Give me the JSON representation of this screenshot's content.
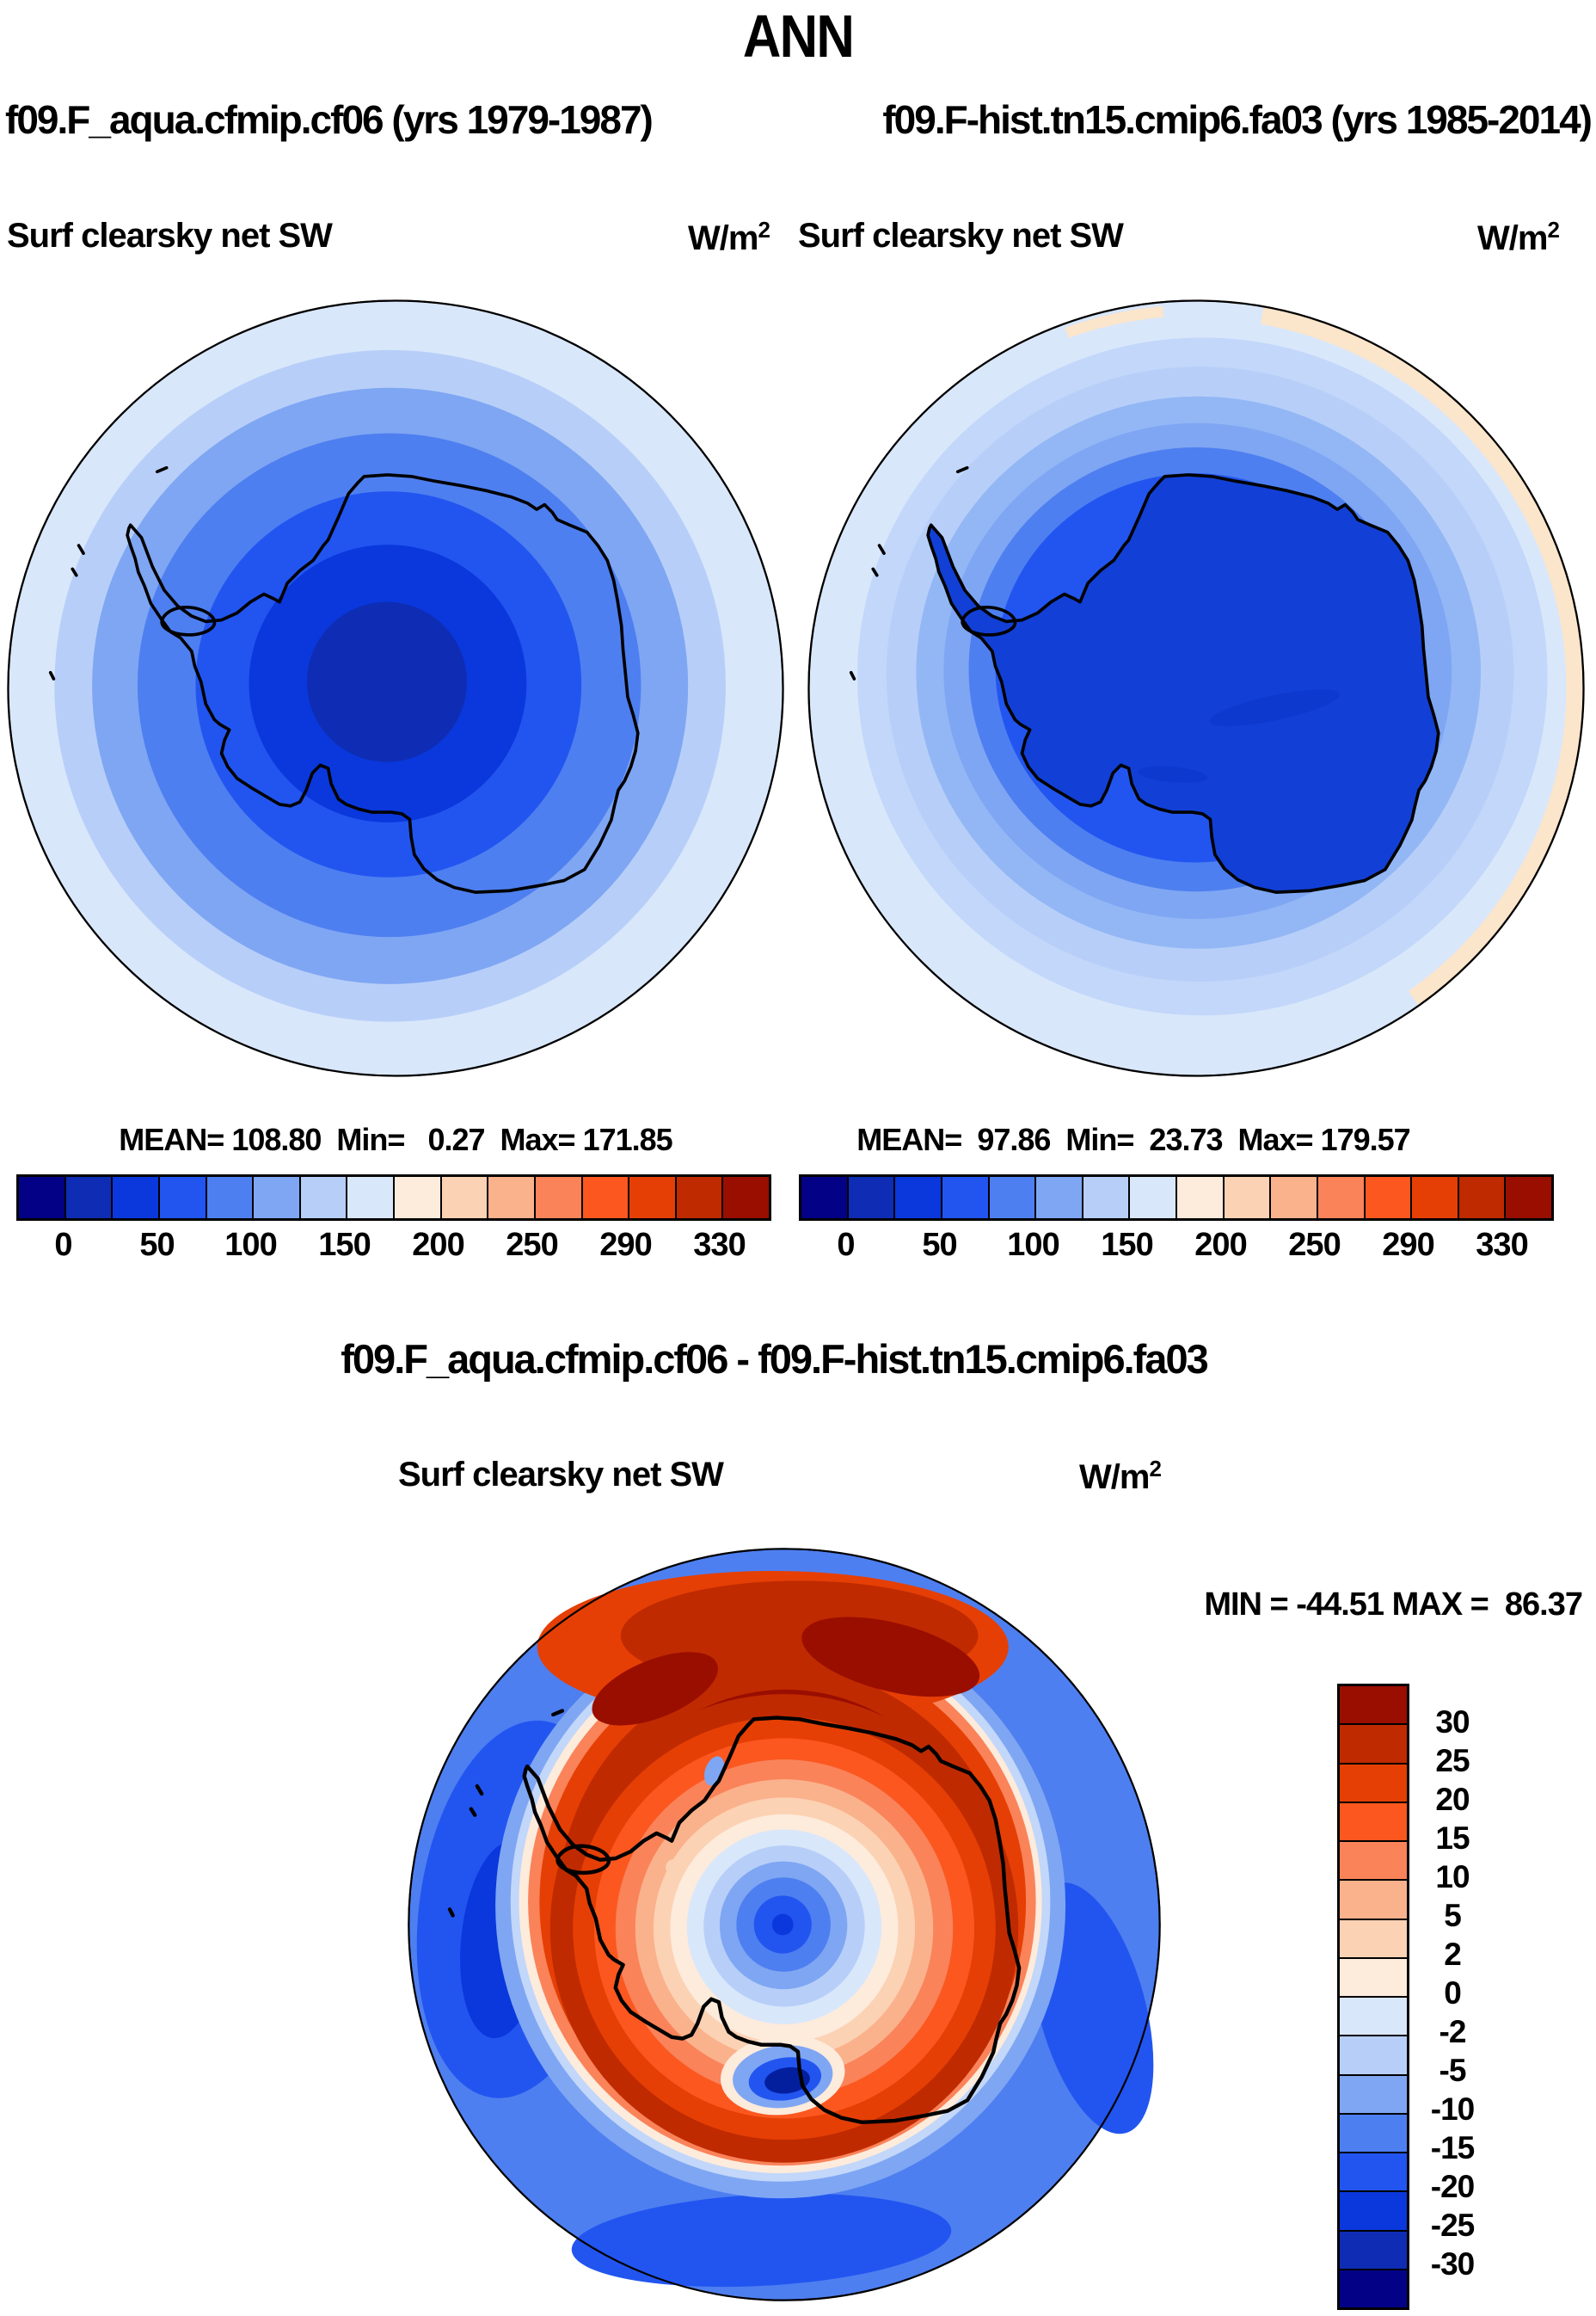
{
  "title": "ANN",
  "header": {
    "subtitle_left": "f09.F_aqua.cfmip.cf06 (yrs 1979-1987)",
    "subtitle_right": "f09.F-hist.tn15.cmip6.fa03 (yrs 1985-2014)"
  },
  "panels": {
    "left": {
      "title": "Surf clearsky net SW",
      "units": "W/m",
      "units_exp": "2",
      "stats": "MEAN= 108.80  Min=   0.27  Max= 171.85"
    },
    "right": {
      "title": "Surf clearsky net SW",
      "units": "W/m",
      "units_exp": "2",
      "stats": "MEAN=  97.86  Min=  23.73  Max= 179.57"
    },
    "diff": {
      "heading": "f09.F_aqua.cfmip.cf06 - f09.F-hist.tn15.cmip6.fa03",
      "title": "Surf clearsky net SW",
      "units": "W/m",
      "units_exp": "2",
      "minmax": "MIN = -44.51 MAX =  86.37"
    }
  },
  "colorbar": {
    "palette": [
      "#030287",
      "#0E2DB4",
      "#0A38DC",
      "#2255F0",
      "#4E7FF0",
      "#7FA6F3",
      "#B7CFF8",
      "#D9E7FB",
      "#FDEBDC",
      "#FCD2B4",
      "#FAB28C",
      "#FA835A",
      "#FC571F",
      "#E53F05",
      "#C02A00",
      "#9A0E00"
    ],
    "ticks": [
      "0",
      "50",
      "100",
      "150",
      "200",
      "250",
      "290",
      "330"
    ]
  },
  "diff_colorbar": {
    "ticks_top_to_bottom": [
      "30",
      "25",
      "20",
      "15",
      "10",
      "5",
      "2",
      "0",
      "-2",
      "-5",
      "-10",
      "-15",
      "-20",
      "-25",
      "-30"
    ]
  },
  "map_colors": {
    "continent_fill": "#1240D6",
    "rim_peach": "#FBE5CB",
    "ring_light": "#C2D7F9",
    "ring_mid": "#93B7F5",
    "ross_core": "#041F9E",
    "coast": "#000000"
  },
  "chart_data": [
    {
      "type": "heatmap",
      "subtype": "south-polar-stereographic-map",
      "region": "Antarctica, 90S to ~60S",
      "season": "ANN",
      "variable": "Surf clearsky net SW",
      "units": "W/m2",
      "run": "f09.F_aqua.cfmip.cf06",
      "years": "1979-1987",
      "stats": {
        "mean": 108.8,
        "min": 0.27,
        "max": 171.85
      },
      "colorbar_tick_labels": [
        0,
        50,
        100,
        150,
        200,
        250,
        290,
        330
      ],
      "legend_position": "below",
      "pattern": "smooth concentric rings decreasing from ~170 W/m2 (pale blue) at the 60S map edge to ~25-50 W/m2 (dark blue) near the pole; bullseye slightly left of and below map center; Antarctic coastline overlaid in black"
    },
    {
      "type": "heatmap",
      "subtype": "south-polar-stereographic-map",
      "region": "Antarctica, 90S to ~60S",
      "season": "ANN",
      "variable": "Surf clearsky net SW",
      "units": "W/m2",
      "run": "f09.F-hist.tn15.cmip6.fa03",
      "years": "1985-2014",
      "stats": {
        "mean": 97.86,
        "min": 23.73,
        "max": 179.57
      },
      "colorbar_tick_labels": [
        0,
        50,
        100,
        150,
        200,
        250,
        290,
        330
      ],
      "legend_position": "below",
      "pattern": "minimum (~25-75 W/m2, dark royal blue) filling the Antarctic continent, values increasing outward through blue bands to ~150-175 W/m2 pale blue ocean, with a narrow ~175-200 W/m2 peach band along the NE/E map rim"
    },
    {
      "type": "heatmap",
      "subtype": "south-polar-stereographic-map",
      "region": "Antarctica, 90S to ~60S",
      "season": "ANN",
      "variable": "Surf clearsky net SW difference",
      "units": "W/m2",
      "expression": "f09.F_aqua.cfmip.cf06 - f09.F-hist.tn15.cmip6.fa03",
      "stats": {
        "min": -44.51,
        "max": 86.37
      },
      "colorbar_tick_labels": [
        30,
        25,
        20,
        15,
        10,
        5,
        2,
        0,
        -2,
        -5,
        -10,
        -15,
        -20,
        -25,
        -30
      ],
      "legend_position": "right-vertical",
      "pattern": "large positive differences (>30, dark red) over most of the continent and coastal seas reaching the rim at the top; negative (blue, -5 to -20) ring of ocean around the rim at left/right/bottom; negative bullseye (to ~-20) centered on the pole; strong negative patch (<-30, dark navy) over the Ross Ice Shelf"
    }
  ]
}
